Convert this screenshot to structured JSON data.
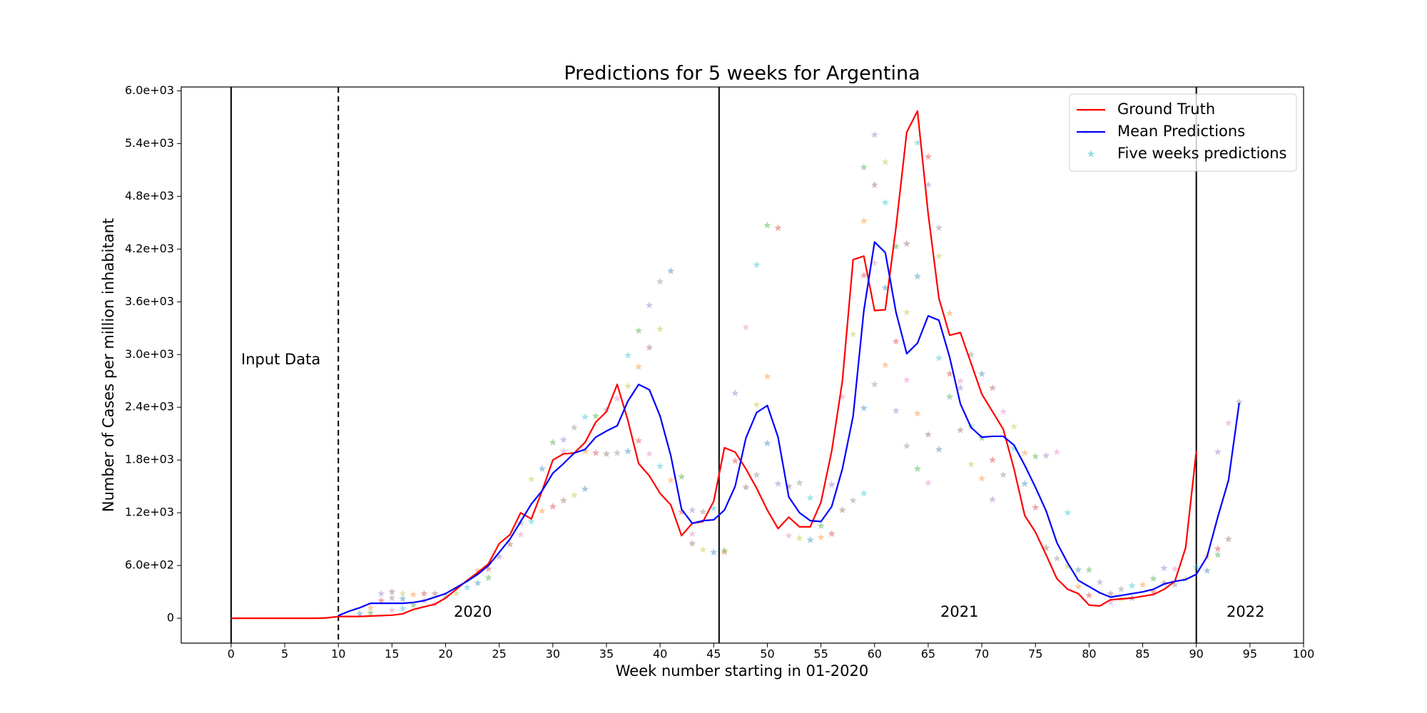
{
  "chart_data": {
    "type": "line",
    "title": "Predictions for 5 weeks for Argentina",
    "xlabel": "Week number starting in 01-2020",
    "ylabel": "Number of Cases per million inhabitant",
    "xlim": [
      -4.65,
      100
    ],
    "ylim": [
      -283,
      6044
    ],
    "xticks": [
      0,
      5,
      10,
      15,
      20,
      25,
      30,
      35,
      40,
      45,
      50,
      55,
      60,
      65,
      70,
      75,
      80,
      85,
      90,
      95,
      100
    ],
    "yticks": [
      0,
      {
        "value": 600,
        "label": "6.0e+02"
      },
      {
        "value": 1200,
        "label": "1.2e+03"
      },
      {
        "value": 1800,
        "label": "1.8e+03"
      },
      {
        "value": 2400,
        "label": "2.4e+03"
      },
      {
        "value": 3000,
        "label": "3.0e+03"
      },
      {
        "value": 3600,
        "label": "3.6e+03"
      },
      {
        "value": 4200,
        "label": "4.2e+03"
      },
      {
        "value": 4800,
        "label": "4.8e+03"
      },
      {
        "value": 5400,
        "label": "5.4e+03"
      },
      {
        "value": 6000,
        "label": "6.0e+03"
      }
    ],
    "vlines": [
      0,
      10,
      45.5,
      90
    ],
    "vline_styles": [
      "solid",
      "dashed",
      "solid",
      "solid"
    ],
    "annotations": [
      "Input Data",
      "2020",
      "2021",
      "2022"
    ],
    "legend": "upper right",
    "series": [
      {
        "name": "Ground Truth",
        "color": "#ff0000",
        "kind": "line",
        "x": [
          0,
          1,
          2,
          3,
          4,
          5,
          6,
          7,
          8,
          9,
          10,
          11,
          12,
          13,
          14,
          15,
          16,
          17,
          18,
          19,
          20,
          21,
          22,
          23,
          24,
          25,
          26,
          27,
          28,
          29,
          30,
          31,
          32,
          33,
          34,
          35,
          36,
          37,
          38,
          39,
          40,
          41,
          42,
          43,
          44,
          45,
          46,
          47,
          48,
          49,
          50,
          51,
          52,
          53,
          54,
          55,
          56,
          57,
          58,
          59,
          60,
          61,
          62,
          63,
          64,
          65,
          66,
          67,
          68,
          69,
          70,
          71,
          72,
          73,
          74,
          75,
          76,
          77,
          78,
          79,
          80,
          81,
          82,
          83,
          84,
          85,
          86,
          87,
          88,
          89,
          90
        ],
        "values": [
          0,
          0,
          0,
          0,
          0,
          0,
          0,
          0,
          0,
          5,
          20,
          20,
          20,
          25,
          30,
          35,
          50,
          100,
          130,
          160,
          230,
          330,
          430,
          520,
          620,
          850,
          950,
          1200,
          1130,
          1450,
          1800,
          1870,
          1880,
          2000,
          2230,
          2350,
          2660,
          2250,
          1760,
          1620,
          1420,
          1290,
          940,
          1080,
          1100,
          1330,
          1940,
          1890,
          1700,
          1480,
          1230,
          1020,
          1150,
          1040,
          1040,
          1320,
          1900,
          2700,
          4080,
          4120,
          3500,
          3510,
          4450,
          5530,
          5770,
          4600,
          3640,
          3220,
          3250,
          2900,
          2550,
          2350,
          2150,
          1700,
          1170,
          980,
          720,
          450,
          330,
          280,
          150,
          140,
          210,
          220,
          230,
          250,
          270,
          330,
          420,
          800,
          1900
        ]
      },
      {
        "name": "Mean Predictions",
        "color": "#0000ff",
        "kind": "line",
        "x": [
          10,
          11,
          12,
          13,
          14,
          15,
          16,
          17,
          18,
          19,
          20,
          21,
          22,
          23,
          24,
          25,
          26,
          27,
          28,
          29,
          30,
          31,
          32,
          33,
          34,
          35,
          36,
          37,
          38,
          39,
          40,
          41,
          42,
          43,
          44,
          45,
          46,
          47,
          48,
          49,
          50,
          51,
          52,
          53,
          54,
          55,
          56,
          57,
          58,
          59,
          60,
          61,
          62,
          63,
          64,
          65,
          66,
          67,
          68,
          69,
          70,
          71,
          72,
          73,
          74,
          75,
          76,
          77,
          78,
          79,
          80,
          81,
          82,
          83,
          84,
          85,
          86,
          87,
          88,
          89,
          90,
          91,
          92,
          93,
          94
        ],
        "values": [
          30,
          80,
          120,
          170,
          170,
          170,
          170,
          180,
          200,
          240,
          280,
          350,
          420,
          500,
          600,
          750,
          900,
          1100,
          1300,
          1450,
          1650,
          1760,
          1880,
          1920,
          2060,
          2130,
          2190,
          2470,
          2660,
          2600,
          2300,
          1850,
          1240,
          1080,
          1110,
          1120,
          1230,
          1500,
          2050,
          2340,
          2420,
          2060,
          1380,
          1200,
          1110,
          1100,
          1270,
          1700,
          2300,
          3500,
          4280,
          4160,
          3480,
          3010,
          3130,
          3440,
          3390,
          2970,
          2440,
          2170,
          2060,
          2070,
          2070,
          1970,
          1740,
          1490,
          1220,
          860,
          630,
          430,
          360,
          290,
          240,
          260,
          280,
          300,
          330,
          390,
          420,
          440,
          500,
          700,
          1150,
          1570,
          2450
        ]
      },
      {
        "name": "Five weeks predictions",
        "color": "#17becf",
        "kind": "scatter",
        "palette": [
          "#1f77b4",
          "#ff7f0e",
          "#2ca02c",
          "#d62728",
          "#9467bd",
          "#8c564b",
          "#e377c2",
          "#7f7f7f",
          "#bcbd22",
          "#17becf"
        ],
        "x": [
          12,
          13,
          13,
          14,
          14,
          15,
          15,
          15,
          16,
          16,
          16,
          17,
          17,
          18,
          18,
          19,
          19,
          20,
          21,
          22,
          23,
          23,
          24,
          24,
          25,
          26,
          27,
          27,
          28,
          28,
          29,
          29,
          30,
          30,
          31,
          31,
          31,
          32,
          32,
          33,
          33,
          33,
          34,
          34,
          35,
          35,
          36,
          36,
          37,
          37,
          37,
          38,
          38,
          38,
          39,
          39,
          39,
          40,
          40,
          40,
          41,
          41,
          42,
          42,
          43,
          43,
          43,
          44,
          44,
          45,
          45,
          46,
          46,
          47,
          47,
          48,
          48,
          49,
          49,
          49,
          50,
          50,
          50,
          51,
          51,
          52,
          52,
          53,
          53,
          54,
          54,
          55,
          55,
          56,
          56,
          57,
          57,
          58,
          58,
          59,
          59,
          59,
          59,
          59,
          60,
          60,
          60,
          60,
          61,
          61,
          61,
          61,
          62,
          62,
          62,
          63,
          63,
          63,
          63,
          64,
          64,
          64,
          64,
          65,
          65,
          65,
          65,
          66,
          66,
          66,
          66,
          67,
          67,
          67,
          68,
          68,
          68,
          69,
          69,
          69,
          70,
          70,
          70,
          71,
          71,
          71,
          72,
          72,
          73,
          73,
          74,
          74,
          75,
          75,
          76,
          76,
          77,
          77,
          78,
          78,
          79,
          79,
          80,
          80,
          81,
          82,
          82,
          83,
          83,
          84,
          84,
          85,
          86,
          86,
          87,
          87,
          88,
          88,
          89,
          90,
          91,
          91,
          92,
          92,
          92,
          93,
          93,
          94
        ],
        "values": [
          50,
          120,
          60,
          200,
          280,
          300,
          90,
          230,
          280,
          110,
          220,
          270,
          150,
          280,
          200,
          280,
          160,
          260,
          280,
          350,
          400,
          540,
          460,
          560,
          700,
          840,
          950,
          1080,
          1580,
          1100,
          1700,
          1220,
          2000,
          1270,
          2030,
          1340,
          1900,
          2170,
          1400,
          2290,
          1470,
          1900,
          2300,
          1880,
          2370,
          1870,
          2500,
          1880,
          2640,
          2990,
          1900,
          2860,
          3270,
          2020,
          3560,
          3080,
          1870,
          3830,
          3290,
          1730,
          3950,
          1570,
          1610,
          1210,
          1230,
          850,
          960,
          1210,
          780,
          1250,
          750,
          750,
          770,
          1790,
          2560,
          1490,
          3310,
          1630,
          2430,
          4020,
          1990,
          2750,
          4470,
          4440,
          1530,
          1500,
          940,
          1540,
          910,
          1370,
          890,
          920,
          1050,
          960,
          1520,
          1230,
          2520,
          1340,
          3230,
          1420,
          2390,
          4520,
          5130,
          3900,
          5500,
          4930,
          4040,
          2660,
          5190,
          4730,
          3760,
          2880,
          4230,
          3150,
          2360,
          4260,
          2710,
          1960,
          3480,
          5410,
          3890,
          2330,
          1700,
          5250,
          4930,
          2090,
          1540,
          4440,
          4120,
          2960,
          1920,
          3470,
          2520,
          2780,
          2620,
          2140,
          2700,
          3000,
          1750,
          2180,
          2780,
          1590,
          2050,
          1800,
          1350,
          2620,
          2350,
          1630,
          2180,
          1930,
          1530,
          1880,
          1840,
          1260,
          1850,
          800,
          1890,
          680,
          590,
          1200,
          550,
          360,
          550,
          260,
          410,
          280,
          180,
          330,
          220,
          370,
          230,
          380,
          450,
          300,
          570,
          400,
          560,
          380,
          450,
          580,
          540,
          700,
          720,
          790,
          1890,
          900,
          2220,
          2460
        ]
      }
    ]
  }
}
